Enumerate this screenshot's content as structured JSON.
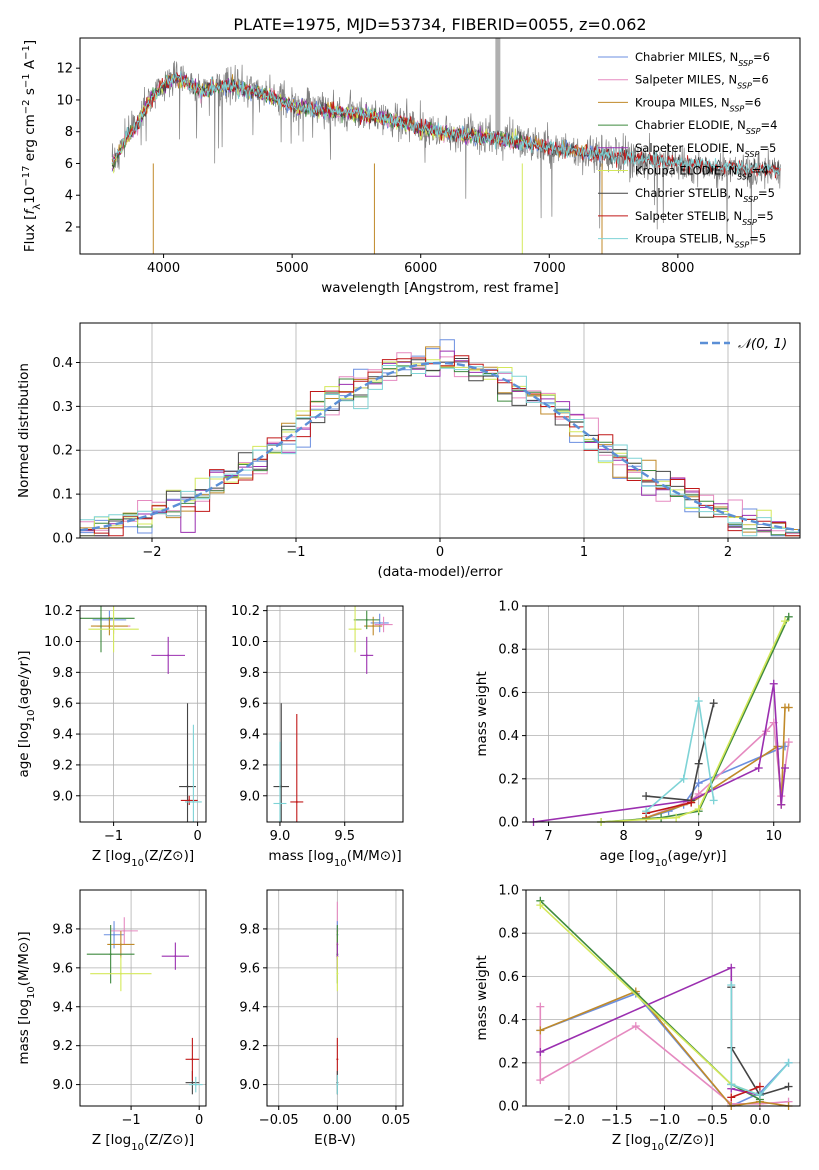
{
  "title": "PLATE=1975, MJD=53734, FIBERID=0055, z=0.062",
  "colors": {
    "Chabrier MILES": "#6b8fe0",
    "Salpeter MILES": "#e58ac0",
    "Kroupa MILES": "#c08a2a",
    "Chabrier ELODIE": "#3f8a3f",
    "Salpeter ELODIE": "#9b2fb0",
    "Kroupa ELODIE": "#d4e85a",
    "Chabrier STELIB": "#444444",
    "Salpeter STELIB": "#c01818",
    "Kroupa STELIB": "#7ed3d6",
    "data": "#808080",
    "normal": "#5b8fd6"
  },
  "chart_data": [
    {
      "id": "spectrum",
      "type": "line",
      "xlabel": "wavelength [Angstrom, rest frame]",
      "ylabel": "Flux [f_λ10^-17 erg cm^-2 s^-1 A^-1]",
      "xlim": [
        3350,
        8950
      ],
      "ylim": [
        0.3,
        13.9
      ],
      "xticks": [
        4000,
        5000,
        6000,
        7000,
        8000
      ],
      "yticks": [
        2,
        4,
        6,
        8,
        10,
        12
      ],
      "grid": false,
      "legend_position": "upper right",
      "data_curve": {
        "name": "data",
        "x": [
          3600,
          3700,
          3800,
          3900,
          4000,
          4100,
          4200,
          4300,
          4400,
          4500,
          4600,
          4700,
          4800,
          5000,
          5200,
          5400,
          5600,
          5800,
          6000,
          6200,
          6400,
          6600,
          6800,
          7000,
          7200,
          7400,
          7600,
          7800,
          8000,
          8200,
          8400,
          8600,
          8800
        ],
        "y": [
          5.8,
          7.5,
          8.6,
          10.2,
          11.0,
          11.5,
          11.0,
          10.5,
          10.8,
          11.0,
          10.8,
          10.6,
          10.4,
          9.7,
          9.4,
          9.3,
          9.0,
          8.8,
          8.2,
          8.0,
          7.8,
          7.7,
          7.4,
          7.0,
          6.8,
          6.5,
          6.3,
          6.1,
          5.9,
          5.7,
          5.6,
          5.5,
          5.5
        ]
      },
      "model_curve_x": [
        3600,
        3700,
        3800,
        3900,
        4000,
        4100,
        4200,
        4300,
        4400,
        4500,
        4600,
        4700,
        4800,
        5000,
        5200,
        5400,
        5600,
        5800,
        6000,
        6200,
        6400,
        6600,
        6800,
        7000,
        7200,
        7400,
        7600,
        7800,
        8000,
        8200,
        8400,
        8600,
        8800
      ],
      "model_curve_y": [
        5.9,
        7.4,
        8.5,
        10.0,
        11.0,
        11.4,
        11.0,
        10.5,
        10.8,
        10.9,
        10.7,
        10.5,
        10.3,
        9.6,
        9.4,
        9.2,
        9.0,
        8.7,
        8.2,
        7.9,
        7.7,
        7.6,
        7.3,
        7.0,
        6.8,
        6.6,
        6.4,
        6.2,
        6.0,
        5.9,
        5.8,
        5.7,
        5.6
      ],
      "series": [
        {
          "name": "Chabrier MILES",
          "n_ssp": "6",
          "x_end": 7400
        },
        {
          "name": "Salpeter MILES",
          "n_ssp": "6",
          "x_end": 7400
        },
        {
          "name": "Kroupa MILES",
          "n_ssp": "6",
          "x_end": 7400
        },
        {
          "name": "Chabrier ELODIE",
          "n_ssp": "4",
          "x_end": 6800
        },
        {
          "name": "Salpeter ELODIE",
          "n_ssp": "5",
          "x_end": 6800
        },
        {
          "name": "Kroupa ELODIE",
          "n_ssp": "4",
          "x_end": 6800
        },
        {
          "name": "Chabrier STELIB",
          "n_ssp": "5",
          "x_end": 8800
        },
        {
          "name": "Salpeter STELIB",
          "n_ssp": "5",
          "x_end": 8800
        },
        {
          "name": "Kroupa STELIB",
          "n_ssp": "5",
          "x_end": 8800
        }
      ]
    },
    {
      "id": "residuals",
      "type": "line",
      "xlabel": "(data-model)/error",
      "ylabel": "Normed distribution",
      "xlim": [
        -2.5,
        2.5
      ],
      "ylim": [
        0,
        0.49
      ],
      "xticks": [
        -2,
        -1,
        0,
        1,
        2
      ],
      "yticks": [
        0.0,
        0.1,
        0.2,
        0.3,
        0.4
      ],
      "grid": true,
      "legend": [
        "𝒩(0, 1)"
      ],
      "legend_position": "upper right",
      "normal_curve": {
        "mean": 0,
        "sigma": 1
      }
    },
    {
      "id": "age_vs_Z",
      "type": "scatter",
      "xlabel": "Z [log10(Z/Z⊙)]",
      "ylabel": "age [log10(age/yr)]",
      "xlim": [
        -1.4,
        0.1
      ],
      "ylim": [
        8.83,
        10.23
      ],
      "xticks": [
        -1,
        0
      ],
      "yticks": [
        9.0,
        9.2,
        9.4,
        9.6,
        9.8,
        10.0,
        10.2
      ],
      "grid": true,
      "points": [
        {
          "series": "Chabrier MILES",
          "x": -1.05,
          "y": 10.14,
          "xerr": 0.2,
          "yerr": 0.06
        },
        {
          "series": "Salpeter MILES",
          "x": -1.0,
          "y": 10.1,
          "xerr": 0.2,
          "yerr": 0.05
        },
        {
          "series": "Kroupa MILES",
          "x": -1.05,
          "y": 10.1,
          "xerr": 0.22,
          "yerr": 0.06
        },
        {
          "series": "Chabrier ELODIE",
          "x": -1.15,
          "y": 10.15,
          "xerr": 0.4,
          "yerr": 0.22
        },
        {
          "series": "Salpeter ELODIE",
          "x": -0.35,
          "y": 9.91,
          "xerr": 0.2,
          "yerr": 0.12
        },
        {
          "series": "Kroupa ELODIE",
          "x": -1.0,
          "y": 10.08,
          "xerr": 0.3,
          "yerr": 0.15
        },
        {
          "series": "Chabrier STELIB",
          "x": -0.12,
          "y": 9.06,
          "xerr": 0.1,
          "yerr": 0.54
        },
        {
          "series": "Salpeter STELIB",
          "x": -0.1,
          "y": 8.97,
          "xerr": 0.1,
          "yerr": 0.03
        },
        {
          "series": "Kroupa STELIB",
          "x": -0.05,
          "y": 8.96,
          "xerr": 0.1,
          "yerr": 0.5
        }
      ]
    },
    {
      "id": "age_vs_mass",
      "type": "scatter",
      "xlabel": "mass [log10(M/M⊙)]",
      "ylabel": "",
      "xlim": [
        8.9,
        9.95
      ],
      "ylim": [
        8.83,
        10.23
      ],
      "xticks": [
        9.0,
        9.5
      ],
      "yticks": [
        9.0,
        9.2,
        9.4,
        9.6,
        9.8,
        10.0,
        10.2
      ],
      "grid": true,
      "points": [
        {
          "series": "Chabrier MILES",
          "x": 9.77,
          "y": 10.12,
          "xerr": 0.07,
          "yerr": 0.06
        },
        {
          "series": "Salpeter MILES",
          "x": 9.8,
          "y": 10.11,
          "xerr": 0.07,
          "yerr": 0.05
        },
        {
          "series": "Kroupa MILES",
          "x": 9.72,
          "y": 10.1,
          "xerr": 0.07,
          "yerr": 0.06
        },
        {
          "series": "Chabrier ELODIE",
          "x": 9.67,
          "y": 10.14,
          "xerr": 0.1,
          "yerr": 0.06
        },
        {
          "series": "Salpeter ELODIE",
          "x": 9.67,
          "y": 9.91,
          "xerr": 0.05,
          "yerr": 0.12
        },
        {
          "series": "Kroupa ELODIE",
          "x": 9.58,
          "y": 10.08,
          "xerr": 0.05,
          "yerr": 0.15
        },
        {
          "series": "Chabrier STELIB",
          "x": 9.01,
          "y": 9.06,
          "xerr": 0.06,
          "yerr": 0.54
        },
        {
          "series": "Salpeter STELIB",
          "x": 9.13,
          "y": 8.96,
          "xerr": 0.05,
          "yerr": 0.57
        },
        {
          "series": "Kroupa STELIB",
          "x": 9.0,
          "y": 8.95,
          "xerr": 0.05,
          "yerr": 0.4
        }
      ]
    },
    {
      "id": "weight_vs_age",
      "type": "line",
      "xlabel": "age [log10(age/yr)]",
      "ylabel": "mass weight",
      "xlim": [
        6.7,
        10.35
      ],
      "ylim": [
        0,
        1.0
      ],
      "xticks": [
        7,
        8,
        9,
        10
      ],
      "yticks": [
        0.0,
        0.2,
        0.4,
        0.6,
        0.8,
        1.0
      ],
      "grid": true,
      "series": [
        {
          "name": "Chabrier MILES",
          "x": [
            8.3,
            8.6,
            8.8,
            9.0,
            10.15
          ],
          "y": [
            0.02,
            0.05,
            0.08,
            0.18,
            0.35
          ]
        },
        {
          "name": "Salpeter MILES",
          "x": [
            8.3,
            8.9,
            9.0,
            9.9,
            10.0,
            10.1,
            10.2
          ],
          "y": [
            0.02,
            0.1,
            0.13,
            0.42,
            0.46,
            0.12,
            0.37
          ]
        },
        {
          "name": "Kroupa MILES",
          "x": [
            8.3,
            8.9,
            10.05,
            10.1,
            10.15,
            10.2
          ],
          "y": [
            0.02,
            0.09,
            0.35,
            0.08,
            0.53,
            0.53
          ]
        },
        {
          "name": "Chabrier ELODIE",
          "x": [
            7.7,
            8.5,
            9.0,
            10.2
          ],
          "y": [
            0.0,
            0.02,
            0.05,
            0.95
          ]
        },
        {
          "name": "Salpeter ELODIE",
          "x": [
            6.8,
            8.9,
            9.8,
            10.0,
            10.1,
            10.15
          ],
          "y": [
            0.0,
            0.1,
            0.25,
            0.64,
            0.08,
            0.25
          ]
        },
        {
          "name": "Kroupa ELODIE",
          "x": [
            7.7,
            8.7,
            9.0,
            10.15
          ],
          "y": [
            0.0,
            0.02,
            0.06,
            0.93
          ]
        },
        {
          "name": "Chabrier STELIB",
          "x": [
            8.3,
            8.9,
            9.0,
            9.2
          ],
          "y": [
            0.12,
            0.1,
            0.27,
            0.55
          ]
        },
        {
          "name": "Salpeter STELIB",
          "x": [
            8.3,
            8.9
          ],
          "y": [
            0.04,
            0.09
          ]
        },
        {
          "name": "Kroupa STELIB",
          "x": [
            8.3,
            8.8,
            9.0,
            9.2
          ],
          "y": [
            0.05,
            0.2,
            0.56,
            0.1
          ]
        }
      ]
    },
    {
      "id": "mass_vs_Z",
      "type": "scatter",
      "xlabel": "Z [log10(Z/Z⊙)]",
      "ylabel": "mass [log10(M/M⊙)]",
      "xlim": [
        -1.75,
        0.1
      ],
      "ylim": [
        8.89,
        10.0
      ],
      "xticks": [
        -1,
        0
      ],
      "yticks": [
        9.0,
        9.2,
        9.4,
        9.6,
        9.8
      ],
      "grid": true,
      "points": [
        {
          "series": "Chabrier MILES",
          "x": -1.25,
          "y": 9.77,
          "xerr": 0.15,
          "yerr": 0.07
        },
        {
          "series": "Salpeter MILES",
          "x": -1.1,
          "y": 9.79,
          "xerr": 0.2,
          "yerr": 0.07
        },
        {
          "series": "Kroupa MILES",
          "x": -1.15,
          "y": 9.72,
          "xerr": 0.2,
          "yerr": 0.07
        },
        {
          "series": "Chabrier ELODIE",
          "x": -1.3,
          "y": 9.67,
          "xerr": 0.35,
          "yerr": 0.15
        },
        {
          "series": "Salpeter ELODIE",
          "x": -0.35,
          "y": 9.66,
          "xerr": 0.2,
          "yerr": 0.07
        },
        {
          "series": "Kroupa ELODIE",
          "x": -1.15,
          "y": 9.57,
          "xerr": 0.45,
          "yerr": 0.09
        },
        {
          "series": "Chabrier STELIB",
          "x": -0.1,
          "y": 9.01,
          "xerr": 0.1,
          "yerr": 0.06
        },
        {
          "series": "Salpeter STELIB",
          "x": -0.1,
          "y": 9.13,
          "xerr": 0.1,
          "yerr": 0.11
        },
        {
          "series": "Kroupa STELIB",
          "x": -0.05,
          "y": 9.0,
          "xerr": 0.1,
          "yerr": 0.04
        }
      ]
    },
    {
      "id": "mass_vs_ebv",
      "type": "scatter",
      "xlabel": "E(B-V)",
      "ylabel": "",
      "xlim": [
        -0.06,
        0.056
      ],
      "ylim": [
        8.89,
        10.0
      ],
      "xticks": [
        -0.05,
        0.0,
        0.05
      ],
      "yticks": [
        9.0,
        9.2,
        9.4,
        9.6,
        9.8
      ],
      "grid": true,
      "points": [
        {
          "series": "Salpeter MILES",
          "x": 0.0,
          "y": 9.79,
          "xerr": 0,
          "yerr": 0.15
        },
        {
          "series": "Chabrier MILES",
          "x": 0.0,
          "y": 9.77,
          "xerr": 0,
          "yerr": 0.07
        },
        {
          "series": "Kroupa MILES",
          "x": 0.0,
          "y": 9.72,
          "xerr": 0,
          "yerr": 0.07
        },
        {
          "series": "Chabrier ELODIE",
          "x": 0.0,
          "y": 9.67,
          "xerr": 0,
          "yerr": 0.15
        },
        {
          "series": "Salpeter ELODIE",
          "x": 0.0,
          "y": 9.66,
          "xerr": 0,
          "yerr": 0.07
        },
        {
          "series": "Kroupa ELODIE",
          "x": 0.0,
          "y": 9.57,
          "xerr": 0,
          "yerr": 0.09
        },
        {
          "series": "Salpeter STELIB",
          "x": 0.0,
          "y": 9.13,
          "xerr": 0,
          "yerr": 0.11
        },
        {
          "series": "Chabrier STELIB",
          "x": 0.0,
          "y": 9.01,
          "xerr": 0,
          "yerr": 0.06
        },
        {
          "series": "Kroupa STELIB",
          "x": 0.0,
          "y": 9.0,
          "xerr": 0,
          "yerr": 0.05
        }
      ]
    },
    {
      "id": "weight_vs_Z",
      "type": "line",
      "xlabel": "Z [log10(Z/Z⊙)]",
      "ylabel": "mass weight",
      "xlim": [
        -2.45,
        0.42
      ],
      "ylim": [
        0,
        1.0
      ],
      "xticks": [
        -2.0,
        -1.5,
        -1.0,
        -0.5,
        0.0
      ],
      "yticks": [
        0.0,
        0.2,
        0.4,
        0.6,
        0.8,
        1.0
      ],
      "grid": true,
      "series": [
        {
          "name": "Chabrier MILES",
          "x": [
            -2.3,
            -1.3,
            -0.3,
            0.0,
            0.3
          ],
          "y": [
            0.35,
            0.52,
            0.0,
            0.06,
            0.2
          ]
        },
        {
          "name": "Salpeter MILES",
          "x": [
            -2.3,
            -2.3,
            -1.3,
            -0.3,
            0.0,
            0.3
          ],
          "y": [
            0.46,
            0.12,
            0.37,
            0.01,
            0.01,
            0.02
          ]
        },
        {
          "name": "Kroupa MILES",
          "x": [
            -2.3,
            -1.3,
            -0.3,
            0.0,
            0.3
          ],
          "y": [
            0.35,
            0.53,
            0.0,
            0.02,
            0.0
          ]
        },
        {
          "name": "Chabrier ELODIE",
          "x": [
            -2.3,
            -0.3,
            0.0
          ],
          "y": [
            0.95,
            0.1,
            0.03
          ]
        },
        {
          "name": "Salpeter ELODIE",
          "x": [
            -2.3,
            -0.3,
            -0.3,
            0.0
          ],
          "y": [
            0.25,
            0.64,
            0.08,
            0.05
          ]
        },
        {
          "name": "Kroupa ELODIE",
          "x": [
            -2.3,
            -0.3,
            0.0
          ],
          "y": [
            0.93,
            0.1,
            0.05
          ]
        },
        {
          "name": "Chabrier STELIB",
          "x": [
            -0.3,
            -0.3,
            0.0,
            0.3
          ],
          "y": [
            0.55,
            0.27,
            0.05,
            0.09
          ]
        },
        {
          "name": "Salpeter STELIB",
          "x": [
            -0.3,
            0.0
          ],
          "y": [
            0.04,
            0.09
          ]
        },
        {
          "name": "Kroupa STELIB",
          "x": [
            -0.3,
            -0.3,
            0.0,
            0.3
          ],
          "y": [
            0.56,
            0.1,
            0.05,
            0.2
          ]
        }
      ]
    }
  ]
}
